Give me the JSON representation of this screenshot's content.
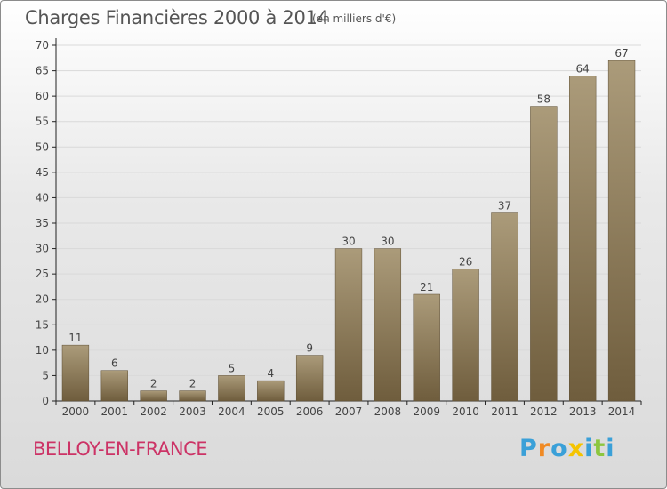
{
  "title": "Charges Financières 2000 à 2014",
  "unit_note": "(en milliers d'€)",
  "commune": "BELLOY-EN-FRANCE",
  "logo": {
    "letters": [
      "P",
      "r",
      "o",
      "x",
      "i",
      "t",
      "i"
    ],
    "colors": [
      "#3aa0d8",
      "#f08a24",
      "#3aa0d8",
      "#f5c400",
      "#3aa0d8",
      "#8cc63f",
      "#3aa0d8"
    ]
  },
  "colors": {
    "bar_top": "#ab9b7a",
    "bar_bottom": "#6f5d3d",
    "grid": "#d9d9d9",
    "axis": "#222222",
    "text": "#444444"
  },
  "chart_data": {
    "type": "bar",
    "categories": [
      "2000",
      "2001",
      "2002",
      "2003",
      "2004",
      "2005",
      "2006",
      "2007",
      "2008",
      "2009",
      "2010",
      "2011",
      "2012",
      "2013",
      "2014"
    ],
    "values": [
      11,
      6,
      2,
      2,
      5,
      4,
      9,
      30,
      30,
      21,
      26,
      37,
      58,
      64,
      67
    ],
    "ylim": [
      0,
      70
    ],
    "yticks": [
      0,
      5,
      10,
      15,
      20,
      25,
      30,
      35,
      40,
      45,
      50,
      55,
      60,
      65,
      70
    ],
    "grid": true,
    "data_labels": true
  }
}
